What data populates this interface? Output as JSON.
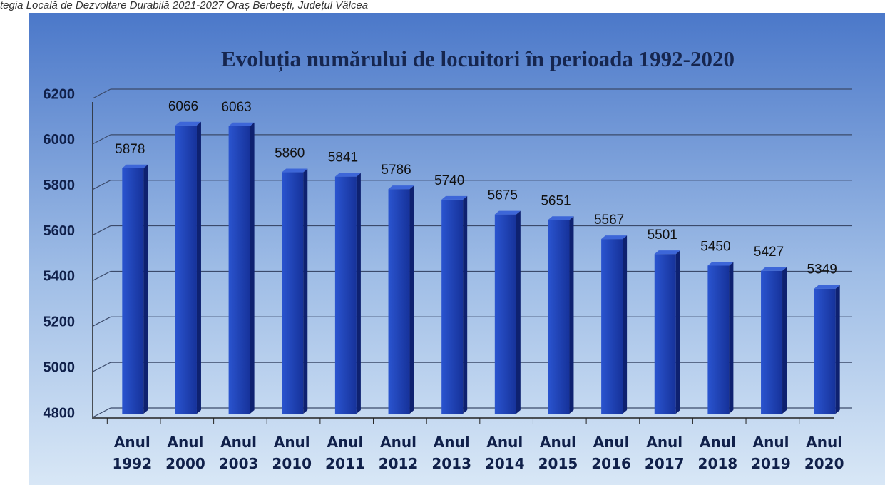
{
  "header_text": "tegia Locală de Dezvoltare Durabilă 2021-2027 Oraș Berbești, Județul Vâlcea",
  "chart_data": {
    "type": "bar",
    "title": "Evoluția numărului de locuitori în perioada 1992-2020",
    "categories": [
      "Anul 1992",
      "Anul 2000",
      "Anul 2003",
      "Anul 2010",
      "Anul 2011",
      "Anul 2012",
      "Anul 2013",
      "Anul 2014",
      "Anul 2015",
      "Anul 2016",
      "Anul 2017",
      "Anul 2018",
      "Anul 2019",
      "Anul 2020"
    ],
    "values": [
      5878,
      6066,
      6063,
      5860,
      5841,
      5786,
      5740,
      5675,
      5651,
      5567,
      5501,
      5450,
      5427,
      5349
    ],
    "color": "#1f45b8",
    "ylim": [
      4800,
      6200
    ],
    "yticks": [
      4800,
      5000,
      5200,
      5400,
      5600,
      5800,
      6000,
      6200
    ],
    "grid": true
  }
}
